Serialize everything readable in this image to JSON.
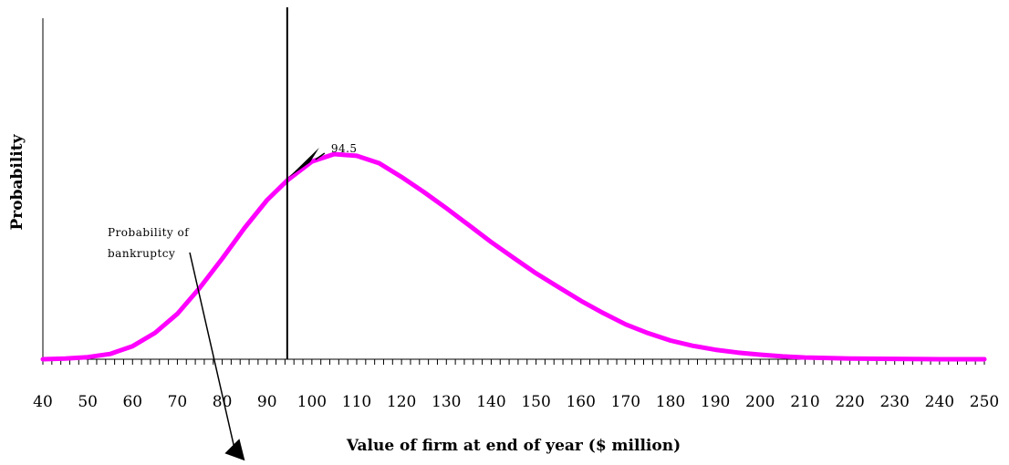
{
  "chart_data": {
    "type": "line",
    "title": "",
    "xlabel": "Value of firm at end of year ($ million)",
    "ylabel": "Probability",
    "xlim": [
      40,
      250
    ],
    "ylim": [
      0,
      1
    ],
    "x_ticks": [
      40,
      50,
      60,
      70,
      80,
      90,
      100,
      110,
      120,
      130,
      140,
      150,
      160,
      170,
      180,
      190,
      200,
      210,
      220,
      230,
      240,
      250
    ],
    "x_tick_step_minor": 2,
    "grid": false,
    "legend": "none",
    "series": [
      {
        "color": "#ff00ff",
        "x": [
          40,
          45,
          50,
          55,
          60,
          65,
          70,
          75,
          80,
          85,
          90,
          94.5,
          100,
          105,
          110,
          115,
          120,
          125,
          130,
          135,
          140,
          145,
          150,
          155,
          160,
          165,
          170,
          175,
          180,
          185,
          190,
          195,
          200,
          205,
          210,
          220,
          230,
          240,
          250
        ],
        "y": [
          0.0,
          0.002,
          0.006,
          0.015,
          0.037,
          0.075,
          0.129,
          0.203,
          0.286,
          0.373,
          0.452,
          0.508,
          0.562,
          0.583,
          0.578,
          0.557,
          0.518,
          0.475,
          0.429,
          0.381,
          0.333,
          0.288,
          0.244,
          0.205,
          0.166,
          0.131,
          0.099,
          0.074,
          0.053,
          0.038,
          0.027,
          0.019,
          0.013,
          0.008,
          0.005,
          0.002,
          0.001,
          0.0,
          0.0
        ]
      }
    ],
    "vline": {
      "x": 94.5,
      "label": "94.5"
    },
    "annotations": [
      {
        "text_lines": [
          "Probability of",
          "bankruptcy"
        ],
        "arrow_to": [
          82,
          0.3
        ]
      },
      {
        "text": "94.5",
        "arrow_to": [
          94.5,
          0.93
        ]
      }
    ]
  }
}
